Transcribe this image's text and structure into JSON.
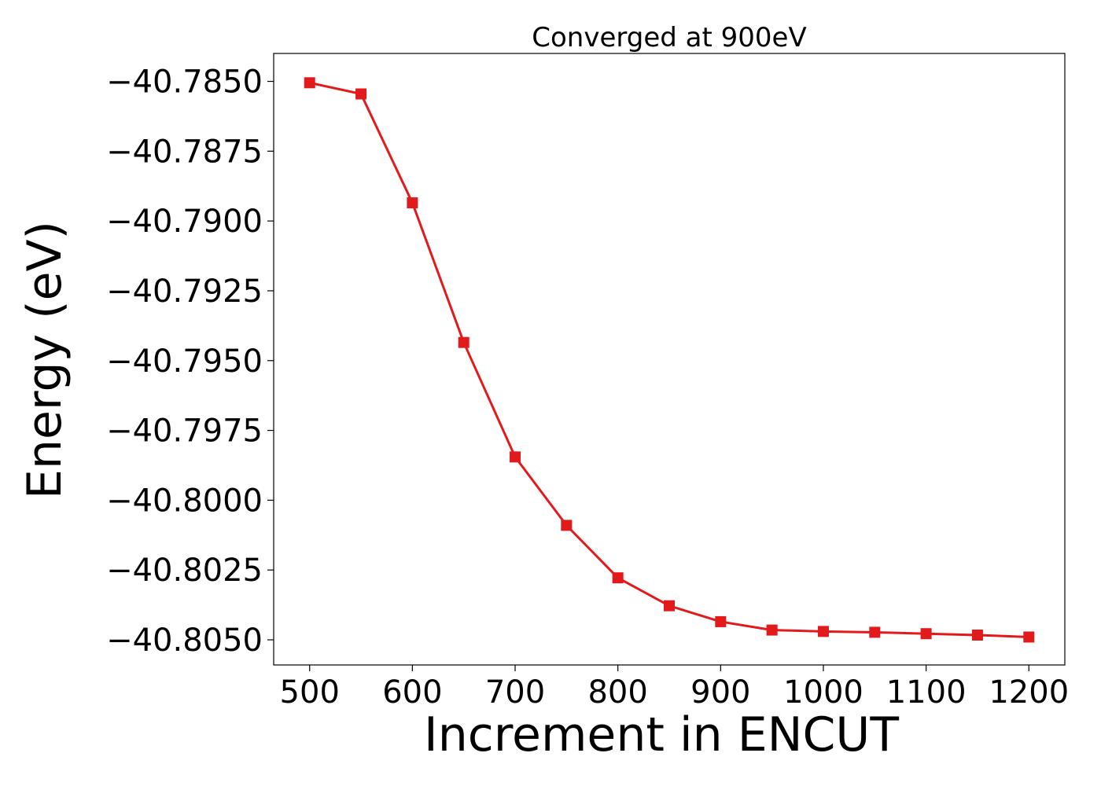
{
  "chart_data": {
    "type": "line",
    "title": "Converged at 900eV",
    "xlabel": "Increment in ENCUT",
    "ylabel": "Energy (eV)",
    "xlim": [
      465,
      1235
    ],
    "ylim": [
      -40.8059,
      -40.784
    ],
    "x_ticks": [
      500,
      600,
      700,
      800,
      900,
      1000,
      1100,
      1200
    ],
    "x_tick_labels": [
      "500",
      "600",
      "700",
      "800",
      "900",
      "1000",
      "1100",
      "1200"
    ],
    "y_ticks": [
      -40.785,
      -40.7875,
      -40.79,
      -40.7925,
      -40.795,
      -40.7975,
      -40.8,
      -40.8025,
      -40.805
    ],
    "y_tick_labels": [
      "−40.7850",
      "−40.7875",
      "−40.7900",
      "−40.7925",
      "−40.7950",
      "−40.7975",
      "−40.8000",
      "−40.8025",
      "−40.8050"
    ],
    "grid": false,
    "series": [
      {
        "marker": "square",
        "color": "#e31a1c",
        "x": [
          500,
          550,
          600,
          650,
          700,
          750,
          800,
          850,
          900,
          950,
          1000,
          1050,
          1100,
          1150,
          1200
        ],
        "y": [
          -40.78505,
          -40.78545,
          -40.78935,
          -40.79435,
          -40.79845,
          -40.8009,
          -40.80278,
          -40.80378,
          -40.80435,
          -40.80465,
          -40.8047,
          -40.80473,
          -40.80478,
          -40.80483,
          -40.8049
        ]
      }
    ]
  }
}
